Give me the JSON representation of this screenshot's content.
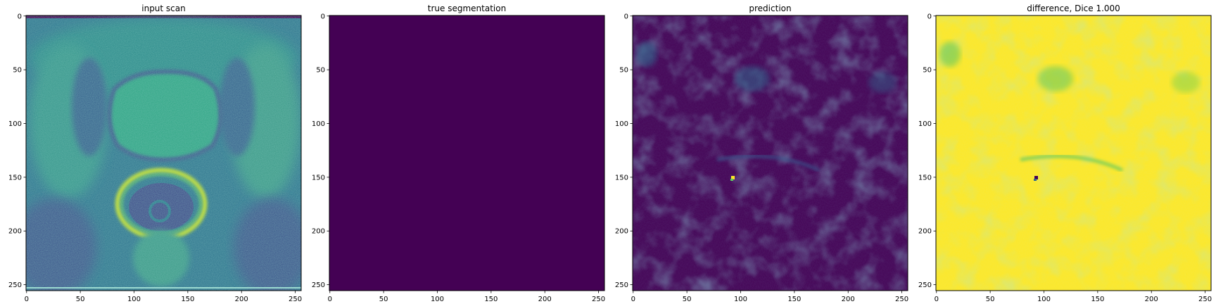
{
  "chart_data": [
    {
      "type": "heatmap",
      "title": "input scan",
      "colormap": "viridis",
      "content": "mri-axial-pelvis",
      "xlim": [
        0,
        255
      ],
      "ylim": [
        255,
        0
      ],
      "xticks": [
        0,
        50,
        100,
        150,
        200,
        250
      ],
      "yticks": [
        0,
        50,
        100,
        150,
        200,
        250
      ]
    },
    {
      "type": "heatmap",
      "title": "true segmentation",
      "colormap": "viridis",
      "content": "uniform-zero",
      "xlim": [
        0,
        255
      ],
      "ylim": [
        255,
        0
      ],
      "xticks": [
        0,
        50,
        100,
        150,
        200,
        250
      ],
      "yticks": [
        0,
        50,
        100,
        150,
        200,
        250
      ]
    },
    {
      "type": "heatmap",
      "title": "prediction",
      "colormap": "viridis",
      "content": "mostly-low-with-faint-structure",
      "xlim": [
        0,
        255
      ],
      "ylim": [
        255,
        0
      ],
      "xticks": [
        0,
        50,
        100,
        150,
        200,
        250
      ],
      "yticks": [
        0,
        50,
        100,
        150,
        200,
        250
      ]
    },
    {
      "type": "heatmap",
      "title": "difference, Dice 1.000",
      "colormap": "viridis",
      "content": "mostly-high-with-faint-structure",
      "xlim": [
        0,
        255
      ],
      "ylim": [
        255,
        0
      ],
      "xticks": [
        0,
        50,
        100,
        150,
        200,
        250
      ],
      "yticks": [
        0,
        50,
        100,
        150,
        200,
        250
      ]
    }
  ],
  "colors": {
    "viridis_low": "#440154",
    "viridis_mid": "#21918c",
    "viridis_high": "#fde725"
  }
}
